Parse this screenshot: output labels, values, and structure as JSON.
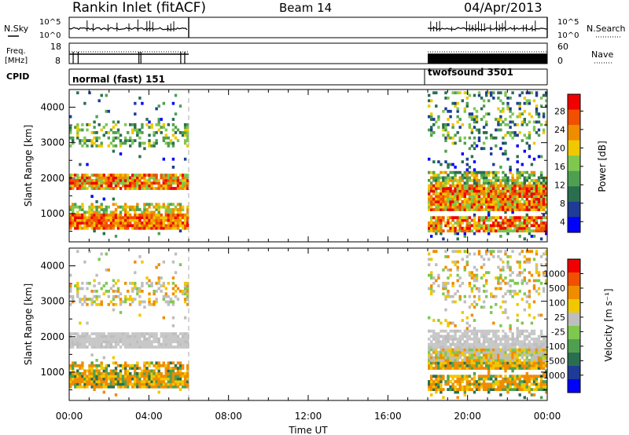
{
  "header": {
    "title": "Rankin Inlet (fitACF)",
    "beam": "Beam 14",
    "date": "04/Apr/2013"
  },
  "side_labels": {
    "nsky": "N.Sky",
    "freq_line1": "Freq.",
    "freq_line2": "[MHz]",
    "cpid": "CPID",
    "nsearch": "N.Search",
    "nave": "Nave"
  },
  "cpid_labels": {
    "first": "normal (fast) 151",
    "second": "twofsound 3501"
  },
  "colors": {
    "power": [
      "#0000ff",
      "#1e3c96",
      "#2a6e50",
      "#4ea050",
      "#7ec850",
      "#f0c800",
      "#f08c00",
      "#f05000",
      "#f00000"
    ],
    "velocity": [
      "#0000ff",
      "#1e3c96",
      "#2a6e50",
      "#4ea050",
      "#7ec850",
      "#bebebe",
      "#f0c800",
      "#f08c00",
      "#f05000",
      "#f00000"
    ],
    "grey_band": "#c8c8c8"
  },
  "chart_data": [
    {
      "type": "line",
      "name": "noise-panel",
      "left_axis": {
        "label": "N.Sky",
        "ticks": [
          "10^5",
          "10^0"
        ]
      },
      "right_axis": {
        "label": "N.Search",
        "ticks": [
          "10^5",
          "10^0"
        ]
      },
      "segments_hours": [
        [
          0.0,
          6.0
        ],
        [
          18.0,
          24.0
        ]
      ]
    },
    {
      "type": "line",
      "name": "frequency-panel",
      "left_axis": {
        "label": "Freq. [MHz]",
        "ticks": [
          "18",
          "8"
        ]
      },
      "right_axis": {
        "label": "Nave",
        "ticks": [
          "60",
          "0"
        ]
      },
      "segments_hours": [
        [
          0.0,
          6.0
        ],
        [
          18.0,
          24.0
        ]
      ]
    },
    {
      "type": "table",
      "name": "cpid-panel",
      "entries": [
        {
          "start_hour": 0.0,
          "label": "normal (fast) 151"
        },
        {
          "start_hour": 18.0,
          "label": "twofsound 3501"
        }
      ]
    },
    {
      "type": "heatmap",
      "name": "power-panel",
      "ylabel": "Slant Range [km]",
      "yticks": [
        1000,
        2000,
        3000,
        4000
      ],
      "ylim": [
        200,
        4500
      ],
      "xlim": [
        0,
        24
      ],
      "colorbar": {
        "label": "Power [dB]",
        "ticks": [
          "28",
          "24",
          "20",
          "16",
          "12",
          "8",
          "4"
        ],
        "range": [
          0,
          30
        ]
      },
      "coverage_hours": [
        [
          0.0,
          6.0
        ],
        [
          18.0,
          24.0
        ]
      ]
    },
    {
      "type": "heatmap",
      "name": "velocity-panel",
      "ylabel": "Slant Range [km]",
      "yticks": [
        1000,
        2000,
        3000,
        4000
      ],
      "ylim": [
        200,
        4500
      ],
      "xlim": [
        0,
        24
      ],
      "colorbar": {
        "label": "Velocity [m s⁻¹]",
        "ticks": [
          "1000",
          "500",
          "100",
          "25",
          "-25",
          "-100",
          "-500",
          "-1000"
        ]
      },
      "coverage_hours": [
        [
          0.0,
          6.0
        ],
        [
          18.0,
          24.0
        ]
      ]
    }
  ],
  "xaxis": {
    "label": "Time UT",
    "ticks": [
      "00:00",
      "04:00",
      "08:00",
      "12:00",
      "16:00",
      "20:00",
      "00:00"
    ]
  }
}
